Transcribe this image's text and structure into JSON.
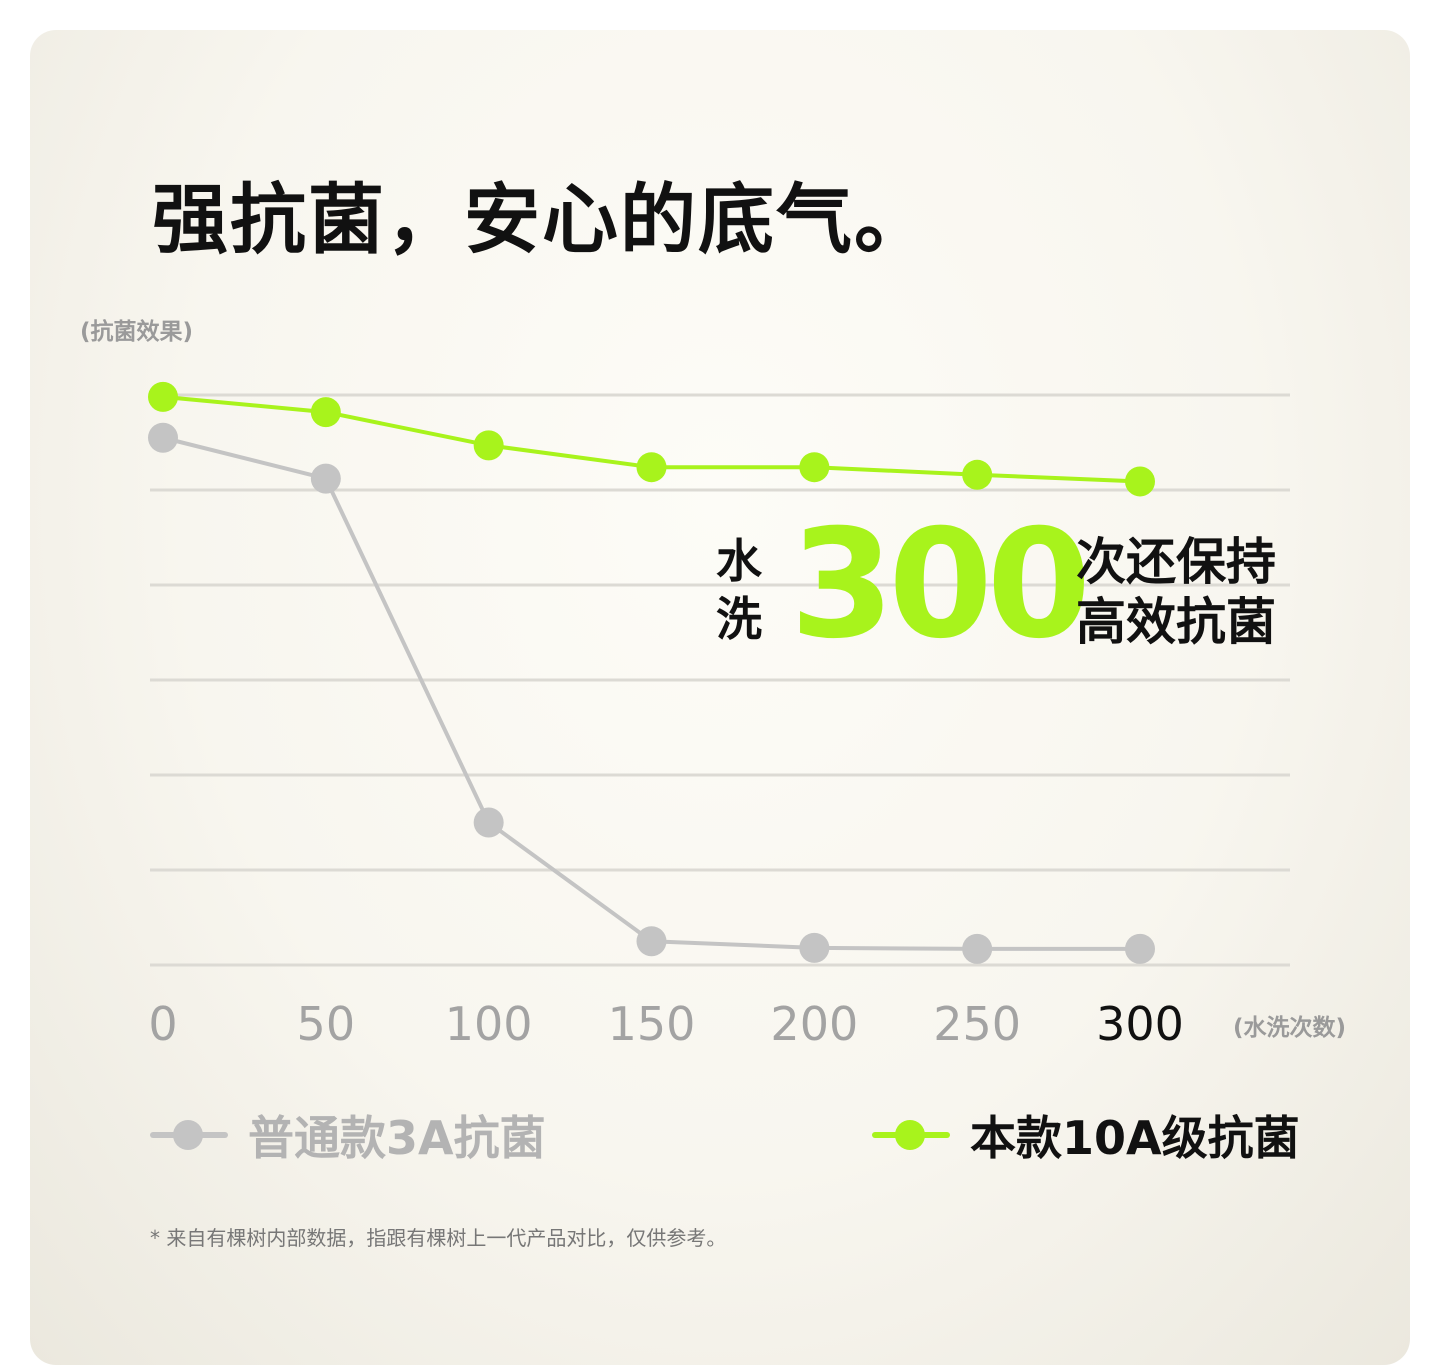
{
  "title": "强抗菌，安心的底气。",
  "y_axis_label": "(抗菌效果)",
  "x_axis_unit": "(水洗次数)",
  "callout": {
    "left": "水洗",
    "number": "300",
    "right_line1": "次还保持",
    "right_line2": "高效抗菌"
  },
  "footnote": "* 来自有棵树内部数据，指跟有棵树上一代产品对比，仅供参考。",
  "colors": {
    "accent_green": "#a8f31c",
    "gray_series": "#c4c4c4",
    "grid": "#dcdad4",
    "text_dark": "#111111",
    "text_gray": "#a3a3a3"
  },
  "chart_data": {
    "type": "line",
    "x": [
      0,
      50,
      100,
      150,
      200,
      250,
      300
    ],
    "x_tick_labels": [
      "0",
      "50",
      "100",
      "150",
      "200",
      "250",
      "300"
    ],
    "highlight_tick": "300",
    "ylabel": "(抗菌效果)",
    "xlabel": "(水洗次数)",
    "ylim": [
      0,
      6
    ],
    "grid": true,
    "y_axis_numbers_shown": false,
    "legend_position": "bottom",
    "series": [
      {
        "name": "普通款3A抗菌",
        "color": "#c4c4c4",
        "values": [
          5.55,
          5.12,
          1.5,
          0.25,
          0.18,
          0.17,
          0.17
        ]
      },
      {
        "name": "本款10A级抗菌",
        "color": "#a8f31c",
        "values": [
          5.98,
          5.82,
          5.47,
          5.24,
          5.24,
          5.16,
          5.09
        ]
      }
    ]
  }
}
